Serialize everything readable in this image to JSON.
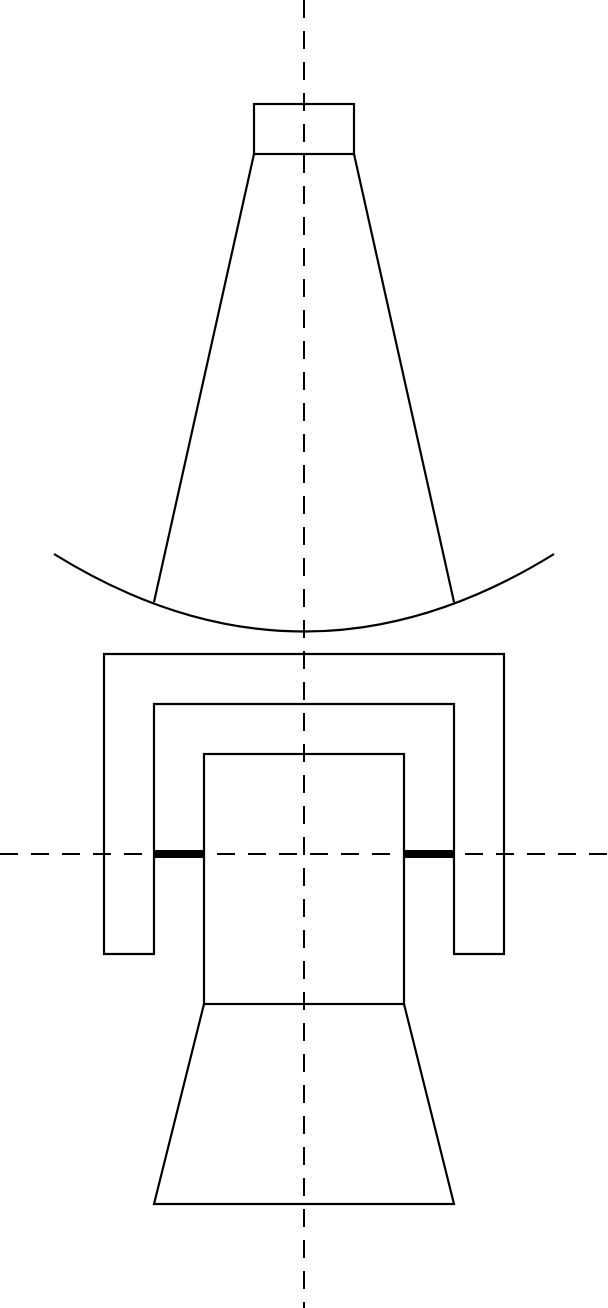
{
  "diagram": {
    "colors": {
      "background": "#ffffff",
      "stroke": "#000000"
    }
  }
}
